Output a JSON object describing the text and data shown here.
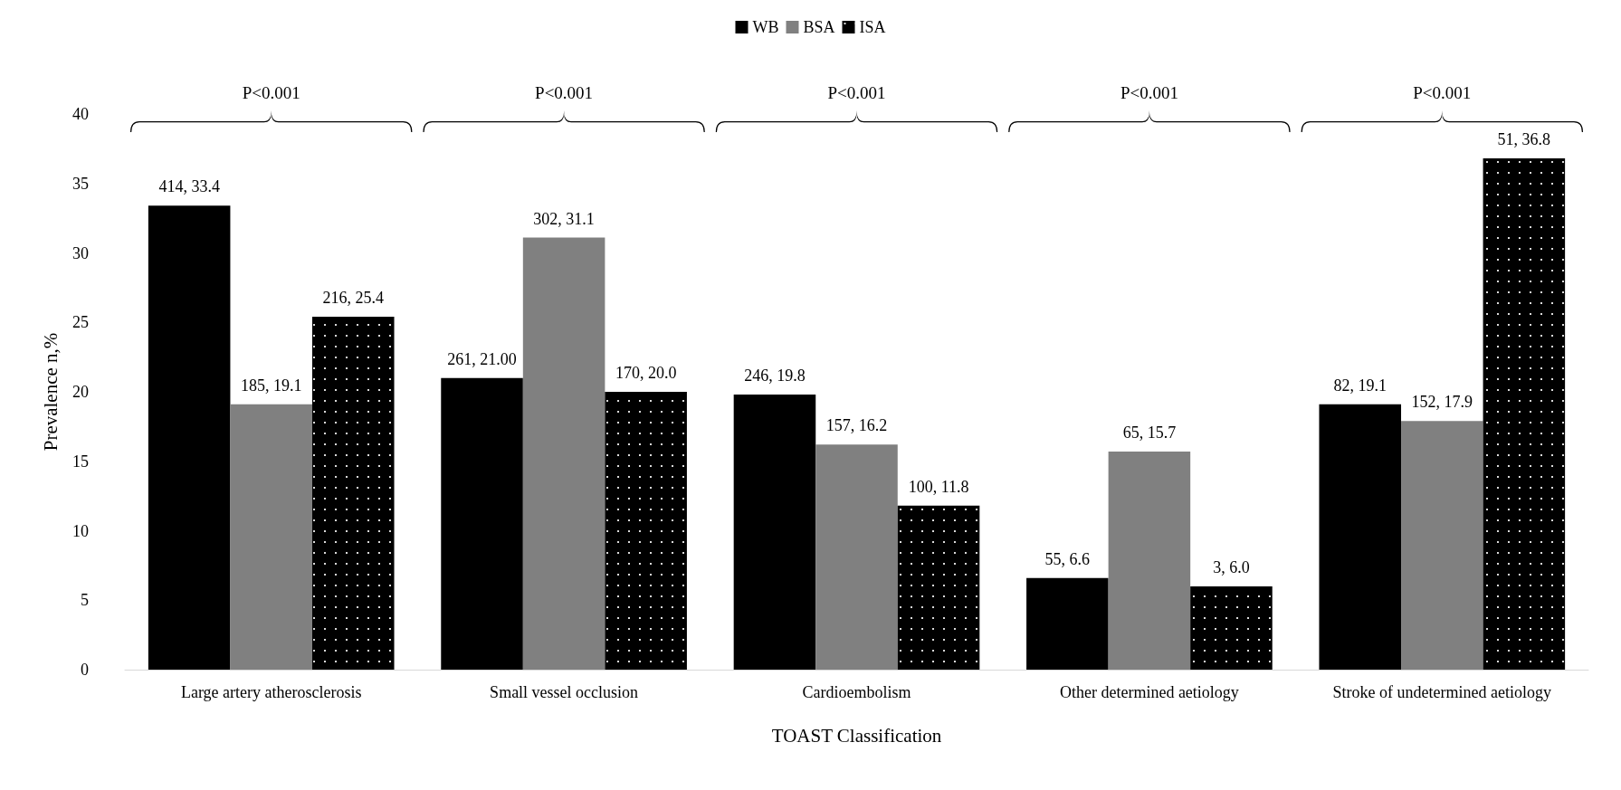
{
  "chart_data": {
    "type": "bar",
    "xlabel": "TOAST Classification",
    "ylabel": "Prevalence n,%",
    "categories": [
      "Large artery atherosclerosis",
      "Small vessel occlusion",
      "Cardioembolism",
      "Other determined aetiology",
      "Stroke of undetermined aetiology"
    ],
    "series": [
      {
        "name": "WB",
        "color": "#000000",
        "values": [
          33.4,
          21.0,
          19.8,
          6.6,
          19.1
        ],
        "value_labels": [
          "414, 33.4",
          "261, 21.00",
          "246, 19.8",
          "55, 6.6",
          "82, 19.1"
        ]
      },
      {
        "name": "BSA",
        "color": "#808080",
        "values": [
          19.1,
          31.1,
          16.2,
          15.7,
          17.9
        ],
        "value_labels": [
          "185, 19.1",
          "302, 31.1",
          "157, 16.2",
          "65, 15.7",
          "152, 17.9"
        ]
      },
      {
        "name": "ISA",
        "color": "#000000",
        "values": [
          25.4,
          20.0,
          11.8,
          6.0,
          36.8
        ],
        "value_labels": [
          "216, 25.4",
          "170, 20.0",
          "100, 11.8",
          "3, 6.0",
          "51, 36.8"
        ]
      }
    ],
    "ylim": [
      0,
      40
    ],
    "yticks": [
      0,
      5,
      10,
      15,
      20,
      25,
      30,
      35,
      40
    ],
    "grid": false,
    "legend": "top",
    "annotations": [
      "P<0.001",
      "P<0.001",
      "P<0.001",
      "P<0.001",
      "P<0.001"
    ]
  }
}
